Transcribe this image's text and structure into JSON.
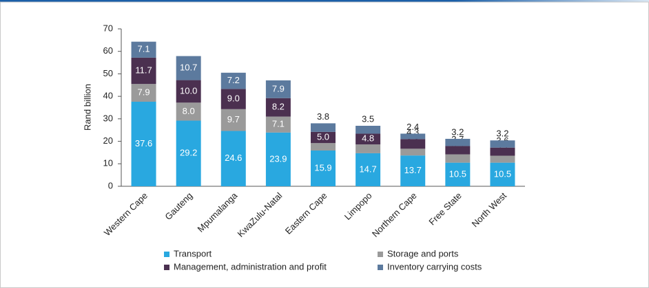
{
  "chart_data": {
    "type": "stacked_bar",
    "y_label": "Rand billion",
    "categories": [
      "Western Cape",
      "Gauteng",
      "Mpumalanga",
      "KwaZulu-Natal",
      "Eastern Cape",
      "Limpopo",
      "Northern Cape",
      "Free State",
      "North West"
    ],
    "series": [
      {
        "name": "Transport",
        "color": "#29a8e0",
        "values": [
          37.6,
          29.2,
          24.6,
          23.9,
          15.9,
          14.7,
          13.7,
          10.5,
          10.5
        ],
        "value_labels": [
          "37.6",
          "29.2",
          "24.6",
          "23.9",
          "15.9",
          "14.7",
          "13.7",
          "10.5",
          "10.5"
        ]
      },
      {
        "name": "Storage and ports",
        "color": "#9a9a9a",
        "values": [
          7.9,
          8.0,
          9.7,
          7.1,
          3.3,
          3.9,
          3.0,
          3.7,
          3.1
        ],
        "value_labels": [
          "7.9",
          "8.0",
          "9.7",
          "7.1",
          "3.3",
          "3.9",
          "3.0",
          "3.7",
          "3.1"
        ]
      },
      {
        "name": "Management, administration and profit",
        "color": "#4b3050",
        "values": [
          11.7,
          10.0,
          9.0,
          8.2,
          5.0,
          4.8,
          4.3,
          3.7,
          3.6
        ],
        "value_labels": [
          "11.7",
          "10.0",
          "9.0",
          "8.2",
          "5.0",
          "4.8",
          "4.3",
          "3.7",
          "3.6"
        ]
      },
      {
        "name": "Inventory carrying costs",
        "color": "#5c7a9e",
        "values": [
          7.1,
          10.7,
          7.2,
          7.9,
          3.8,
          3.5,
          2.4,
          3.2,
          3.2
        ],
        "value_labels": [
          "7.1",
          "10.7",
          "7.2",
          "7.9",
          "3.8",
          "3.5",
          "2.4",
          "3.2",
          "3.2"
        ]
      }
    ],
    "ylim": [
      0,
      70
    ],
    "yticks": [
      0,
      10,
      20,
      30,
      40,
      50,
      60,
      70
    ],
    "grid": false
  }
}
